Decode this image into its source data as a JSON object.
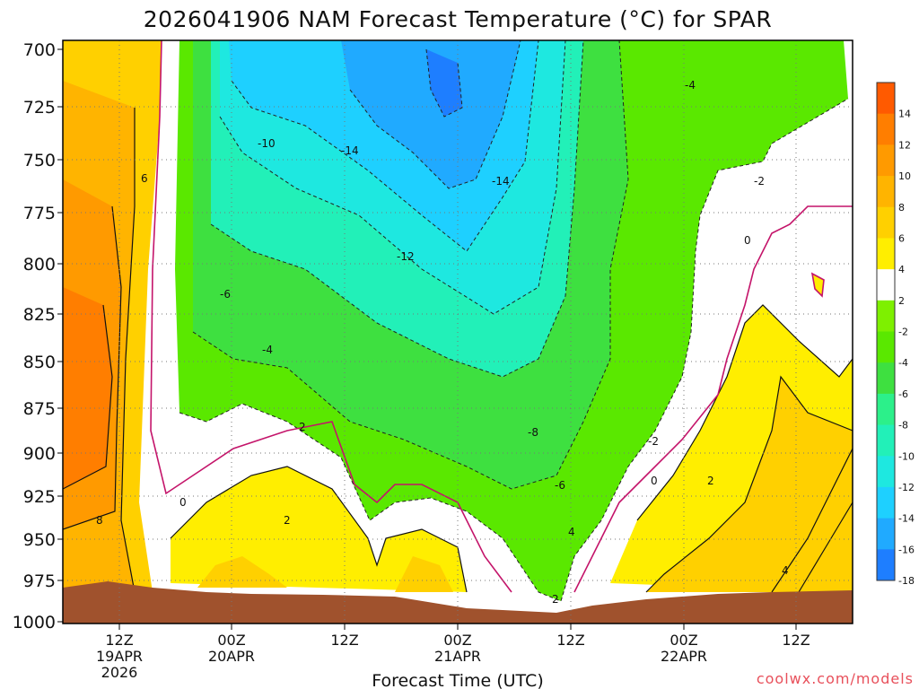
{
  "chart_data": {
    "type": "heatmap",
    "title": "2026041906 NAM Forecast Temperature (°C) for SPAR",
    "xlabel": "Forecast Time (UTC)",
    "ylabel": "",
    "y_axis": {
      "ticks": [
        "700",
        "725",
        "750",
        "775",
        "800",
        "825",
        "850",
        "875",
        "900",
        "925",
        "950",
        "975",
        "1000"
      ],
      "range": [
        700,
        1000
      ],
      "inverted": true
    },
    "x_axis": {
      "ticks": [
        {
          "line1": "12Z",
          "line2": "19APR",
          "line3": "2026",
          "t": 12
        },
        {
          "line1": "00Z",
          "line2": "20APR",
          "line3": "",
          "t": 24
        },
        {
          "line1": "12Z",
          "line2": "",
          "line3": "",
          "t": 36
        },
        {
          "line1": "00Z",
          "line2": "21APR",
          "line3": "",
          "t": 48
        },
        {
          "line1": "12Z",
          "line2": "",
          "line3": "",
          "t": 60
        },
        {
          "line1": "00Z",
          "line2": "22APR",
          "line3": "",
          "t": 72
        },
        {
          "line1": "12Z",
          "line2": "",
          "line3": "",
          "t": 84
        }
      ],
      "range_hours_from_init": [
        0,
        84
      ]
    },
    "grid": true,
    "colorbar": {
      "position": "right",
      "levels": [
        "14",
        "12",
        "10",
        "8",
        "6",
        "4",
        "2",
        "-2",
        "-4",
        "-6",
        "-8",
        "-10",
        "-12",
        "-14",
        "-16",
        "-18"
      ],
      "colors": [
        "#ff5a00",
        "#ff7e00",
        "#ff9a00",
        "#ffb400",
        "#ffd000",
        "#ffee00",
        "#ffffff",
        "#7ef000",
        "#5ae800",
        "#3ee040",
        "#2cf08a",
        "#22f0b8",
        "#1ee8e0",
        "#1ed0ff",
        "#20aaff",
        "#1e7eff"
      ]
    },
    "contour_labels": [
      "-14",
      "-14",
      "-12",
      "-10",
      "-8",
      "-6",
      "-6",
      "-4",
      "-4",
      "-2",
      "-2",
      "2",
      "2",
      "2",
      "6",
      "8",
      "4",
      "4",
      "2",
      "0",
      "0",
      "0",
      "-2",
      "2",
      "-2"
    ]
  },
  "credit": "coolwx.com/models"
}
